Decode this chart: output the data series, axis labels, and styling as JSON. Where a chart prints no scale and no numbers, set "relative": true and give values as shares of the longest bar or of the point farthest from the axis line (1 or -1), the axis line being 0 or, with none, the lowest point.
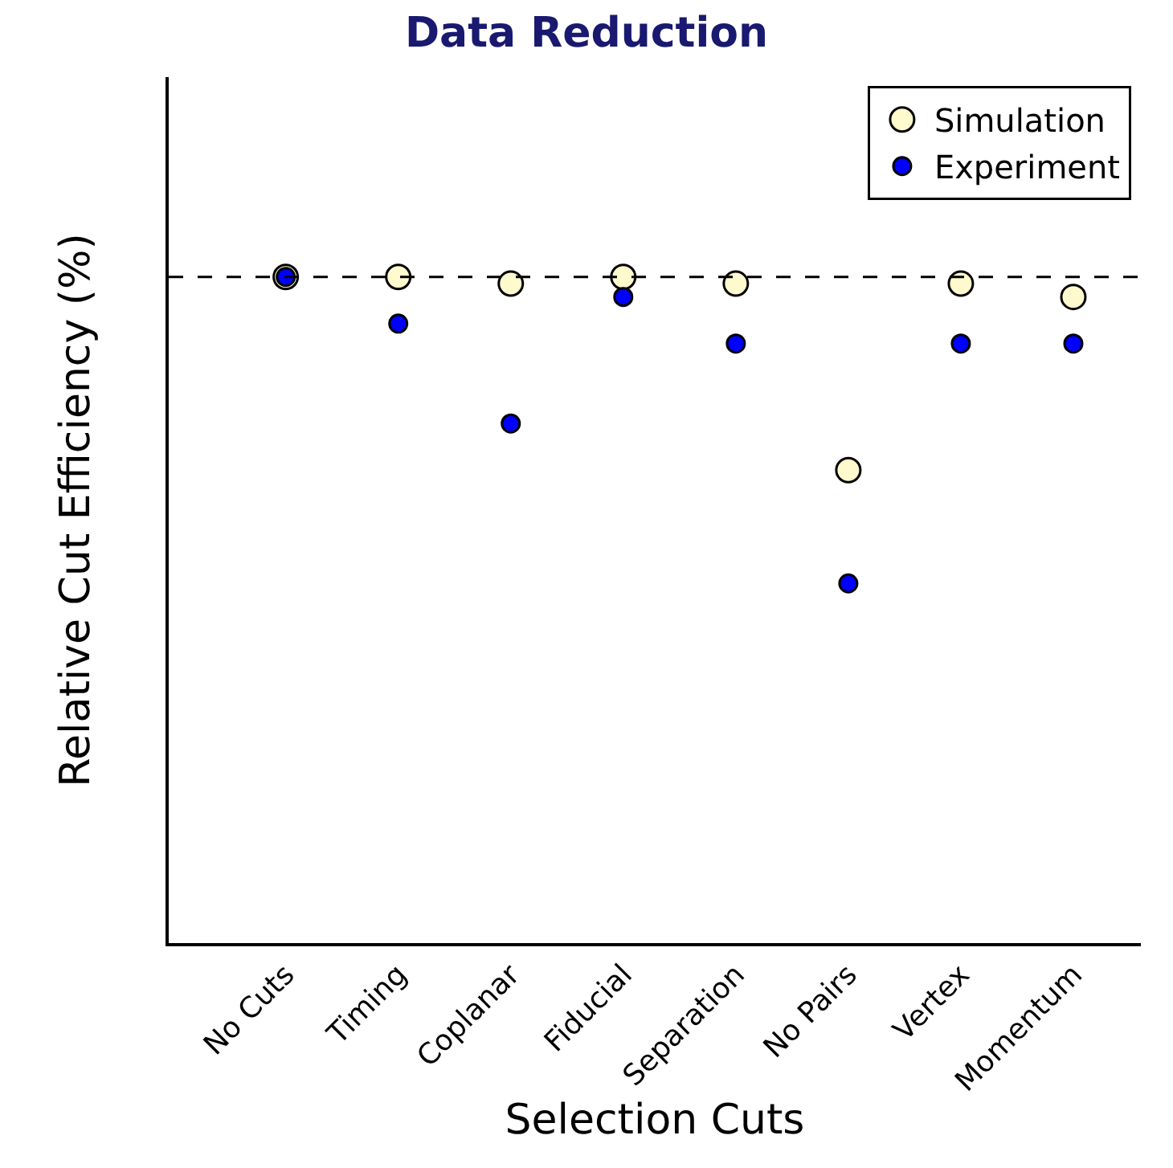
{
  "chart_data": {
    "type": "scatter",
    "title": "Data Reduction",
    "xlabel": "Selection Cuts",
    "ylabel": "Relative Cut Efficiency (%)",
    "relative": true,
    "categories": [
      "No Cuts",
      "Timing",
      "Coplanar",
      "Fiducial",
      "Separation",
      "No Pairs",
      "Vertex",
      "Momentum"
    ],
    "series": [
      {
        "name": "Simulation",
        "color": "#fffacd",
        "values": [
          1.0,
          1.0,
          0.99,
          1.0,
          0.99,
          0.71,
          0.99,
          0.97
        ]
      },
      {
        "name": "Experiment",
        "color": "#0000ff",
        "values": [
          1.0,
          0.93,
          0.78,
          0.97,
          0.9,
          0.54,
          0.9,
          0.9
        ]
      }
    ],
    "ref_lines": [
      {
        "axis": "y",
        "value": 1.0,
        "color": "#000000",
        "line_style": "dashed"
      }
    ],
    "marker": "circle",
    "legend": "top right",
    "grid": false
  }
}
